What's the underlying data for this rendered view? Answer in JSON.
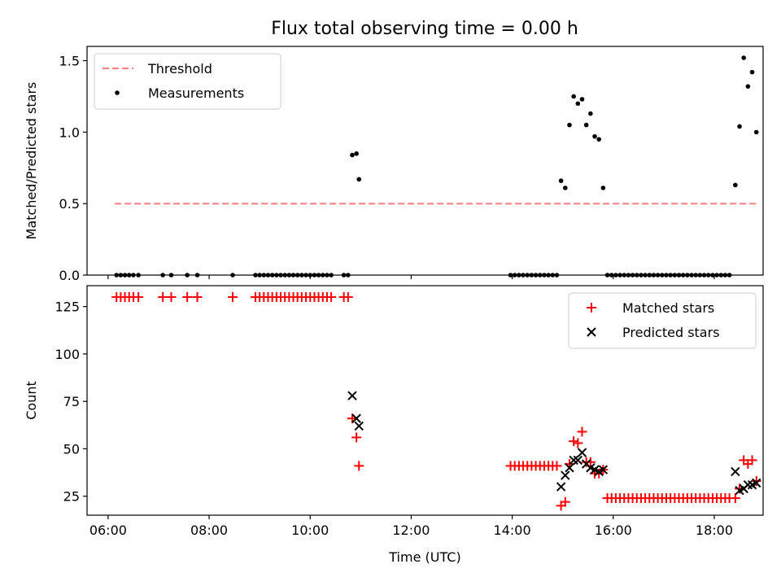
{
  "title": "Flux total observing time = 0.00 h",
  "chart_data": [
    {
      "type": "scatter",
      "panel": "top",
      "title": "Flux total observing time = 0.00 h",
      "xlabel": "",
      "ylabel": "Matched/Predicted stars",
      "xlim": [
        "05:35",
        "18:58"
      ],
      "ylim": [
        0,
        1.6
      ],
      "yticks": [
        0.0,
        0.5,
        1.0,
        1.5
      ],
      "ytick_labels": [
        "0.0",
        "0.5",
        "1.0",
        "1.5"
      ],
      "xticks": [
        "06:00",
        "08:00",
        "10:00",
        "12:00",
        "14:00",
        "16:00",
        "18:00"
      ],
      "legend_position": "upper left",
      "threshold": {
        "name": "Threshold",
        "value": 0.5,
        "x_start": "06:08",
        "x_end": "18:50",
        "color": "#ff7f7f",
        "style": "dashed"
      },
      "series": [
        {
          "name": "Measurements",
          "color": "#000000",
          "points": [
            [
              "06:10",
              0
            ],
            [
              "06:15",
              0
            ],
            [
              "06:20",
              0
            ],
            [
              "06:25",
              0
            ],
            [
              "06:30",
              0
            ],
            [
              "06:36",
              0
            ],
            [
              "07:05",
              0
            ],
            [
              "07:15",
              0
            ],
            [
              "07:34",
              0
            ],
            [
              "07:46",
              0
            ],
            [
              "08:28",
              0
            ],
            [
              "08:55",
              0
            ],
            [
              "09:00",
              0
            ],
            [
              "09:05",
              0
            ],
            [
              "09:10",
              0
            ],
            [
              "09:15",
              0
            ],
            [
              "09:20",
              0
            ],
            [
              "09:25",
              0
            ],
            [
              "09:30",
              0
            ],
            [
              "09:35",
              0
            ],
            [
              "09:40",
              0
            ],
            [
              "09:45",
              0
            ],
            [
              "09:50",
              0
            ],
            [
              "09:55",
              0
            ],
            [
              "10:00",
              0
            ],
            [
              "10:05",
              0
            ],
            [
              "10:10",
              0
            ],
            [
              "10:15",
              0
            ],
            [
              "10:20",
              0
            ],
            [
              "10:25",
              0
            ],
            [
              "10:40",
              0
            ],
            [
              "10:45",
              0
            ],
            [
              "10:50",
              0.84
            ],
            [
              "10:55",
              0.85
            ],
            [
              "10:58",
              0.67
            ],
            [
              "13:58",
              0
            ],
            [
              "14:03",
              0
            ],
            [
              "14:08",
              0
            ],
            [
              "14:13",
              0
            ],
            [
              "14:18",
              0
            ],
            [
              "14:23",
              0
            ],
            [
              "14:28",
              0
            ],
            [
              "14:33",
              0
            ],
            [
              "14:38",
              0
            ],
            [
              "14:43",
              0
            ],
            [
              "14:48",
              0
            ],
            [
              "14:53",
              0
            ],
            [
              "14:58",
              0.66
            ],
            [
              "15:03",
              0.61
            ],
            [
              "15:08",
              1.05
            ],
            [
              "15:13",
              1.25
            ],
            [
              "15:18",
              1.2
            ],
            [
              "15:23",
              1.23
            ],
            [
              "15:28",
              1.05
            ],
            [
              "15:33",
              1.13
            ],
            [
              "15:38",
              0.97
            ],
            [
              "15:43",
              0.95
            ],
            [
              "15:48",
              0.61
            ],
            [
              "15:53",
              0
            ],
            [
              "15:58",
              0
            ],
            [
              "16:03",
              0
            ],
            [
              "16:08",
              0
            ],
            [
              "16:13",
              0
            ],
            [
              "16:18",
              0
            ],
            [
              "16:23",
              0
            ],
            [
              "16:28",
              0
            ],
            [
              "16:33",
              0
            ],
            [
              "16:38",
              0
            ],
            [
              "16:43",
              0
            ],
            [
              "16:48",
              0
            ],
            [
              "16:53",
              0
            ],
            [
              "16:58",
              0
            ],
            [
              "17:03",
              0
            ],
            [
              "17:08",
              0
            ],
            [
              "17:13",
              0
            ],
            [
              "17:18",
              0
            ],
            [
              "17:23",
              0
            ],
            [
              "17:28",
              0
            ],
            [
              "17:33",
              0
            ],
            [
              "17:38",
              0
            ],
            [
              "17:43",
              0
            ],
            [
              "17:48",
              0
            ],
            [
              "17:53",
              0
            ],
            [
              "17:58",
              0
            ],
            [
              "18:03",
              0
            ],
            [
              "18:08",
              0
            ],
            [
              "18:13",
              0
            ],
            [
              "18:18",
              0
            ],
            [
              "18:25",
              0.63
            ],
            [
              "18:30",
              1.04
            ],
            [
              "18:35",
              1.52
            ],
            [
              "18:40",
              1.32
            ],
            [
              "18:45",
              1.42
            ],
            [
              "18:50",
              1.0
            ]
          ]
        }
      ]
    },
    {
      "type": "scatter",
      "panel": "bottom",
      "xlabel": "Time (UTC)",
      "ylabel": "Count",
      "xlim": [
        "05:35",
        "18:58"
      ],
      "ylim": [
        15,
        136
      ],
      "yticks": [
        25,
        50,
        75,
        100,
        125
      ],
      "ytick_labels": [
        "25",
        "50",
        "75",
        "100",
        "125"
      ],
      "xticks": [
        "06:00",
        "08:00",
        "10:00",
        "12:00",
        "14:00",
        "16:00",
        "18:00"
      ],
      "xtick_labels": [
        "06:00",
        "08:00",
        "10:00",
        "12:00",
        "14:00",
        "16:00",
        "18:00"
      ],
      "legend_position": "upper right",
      "series": [
        {
          "name": "Matched stars",
          "marker": "+",
          "color": "#ff0000",
          "points": [
            [
              "06:10",
              130
            ],
            [
              "06:15",
              130
            ],
            [
              "06:20",
              130
            ],
            [
              "06:25",
              130
            ],
            [
              "06:30",
              130
            ],
            [
              "06:36",
              130
            ],
            [
              "07:05",
              130
            ],
            [
              "07:15",
              130
            ],
            [
              "07:34",
              130
            ],
            [
              "07:46",
              130
            ],
            [
              "08:28",
              130
            ],
            [
              "08:55",
              130
            ],
            [
              "09:00",
              130
            ],
            [
              "09:05",
              130
            ],
            [
              "09:10",
              130
            ],
            [
              "09:15",
              130
            ],
            [
              "09:20",
              130
            ],
            [
              "09:25",
              130
            ],
            [
              "09:30",
              130
            ],
            [
              "09:35",
              130
            ],
            [
              "09:40",
              130
            ],
            [
              "09:45",
              130
            ],
            [
              "09:50",
              130
            ],
            [
              "09:55",
              130
            ],
            [
              "10:00",
              130
            ],
            [
              "10:05",
              130
            ],
            [
              "10:10",
              130
            ],
            [
              "10:15",
              130
            ],
            [
              "10:20",
              130
            ],
            [
              "10:25",
              130
            ],
            [
              "10:40",
              130
            ],
            [
              "10:45",
              130
            ],
            [
              "10:50",
              66
            ],
            [
              "10:55",
              56
            ],
            [
              "10:58",
              41
            ],
            [
              "13:58",
              41
            ],
            [
              "14:03",
              41
            ],
            [
              "14:08",
              41
            ],
            [
              "14:13",
              41
            ],
            [
              "14:18",
              41
            ],
            [
              "14:23",
              41
            ],
            [
              "14:28",
              41
            ],
            [
              "14:33",
              41
            ],
            [
              "14:38",
              41
            ],
            [
              "14:43",
              41
            ],
            [
              "14:48",
              41
            ],
            [
              "14:53",
              41
            ],
            [
              "14:58",
              20
            ],
            [
              "15:03",
              22
            ],
            [
              "15:08",
              42
            ],
            [
              "15:13",
              54
            ],
            [
              "15:18",
              53
            ],
            [
              "15:23",
              59
            ],
            [
              "15:28",
              43
            ],
            [
              "15:33",
              43
            ],
            [
              "15:38",
              37
            ],
            [
              "15:43",
              37
            ],
            [
              "15:48",
              39
            ],
            [
              "15:53",
              24
            ],
            [
              "15:58",
              24
            ],
            [
              "16:03",
              24
            ],
            [
              "16:08",
              24
            ],
            [
              "16:13",
              24
            ],
            [
              "16:18",
              24
            ],
            [
              "16:23",
              24
            ],
            [
              "16:28",
              24
            ],
            [
              "16:33",
              24
            ],
            [
              "16:38",
              24
            ],
            [
              "16:43",
              24
            ],
            [
              "16:48",
              24
            ],
            [
              "16:53",
              24
            ],
            [
              "16:58",
              24
            ],
            [
              "17:03",
              24
            ],
            [
              "17:08",
              24
            ],
            [
              "17:13",
              24
            ],
            [
              "17:18",
              24
            ],
            [
              "17:23",
              24
            ],
            [
              "17:28",
              24
            ],
            [
              "17:33",
              24
            ],
            [
              "17:38",
              24
            ],
            [
              "17:43",
              24
            ],
            [
              "17:48",
              24
            ],
            [
              "17:53",
              24
            ],
            [
              "17:58",
              24
            ],
            [
              "18:03",
              24
            ],
            [
              "18:08",
              24
            ],
            [
              "18:13",
              24
            ],
            [
              "18:18",
              24
            ],
            [
              "18:25",
              24
            ],
            [
              "18:30",
              29
            ],
            [
              "18:35",
              44
            ],
            [
              "18:40",
              42
            ],
            [
              "18:45",
              44
            ],
            [
              "18:50",
              33
            ]
          ]
        },
        {
          "name": "Predicted stars",
          "marker": "x",
          "color": "#000000",
          "points": [
            [
              "10:50",
              78
            ],
            [
              "10:55",
              66
            ],
            [
              "10:58",
              62
            ],
            [
              "14:58",
              30
            ],
            [
              "15:03",
              36
            ],
            [
              "15:08",
              40
            ],
            [
              "15:13",
              44
            ],
            [
              "15:18",
              44
            ],
            [
              "15:23",
              48
            ],
            [
              "15:28",
              42
            ],
            [
              "15:33",
              40
            ],
            [
              "15:38",
              39
            ],
            [
              "15:43",
              38
            ],
            [
              "15:48",
              39
            ],
            [
              "18:25",
              38
            ],
            [
              "18:30",
              28
            ],
            [
              "18:35",
              29
            ],
            [
              "18:40",
              31
            ],
            [
              "18:45",
              31
            ],
            [
              "18:50",
              32
            ]
          ]
        }
      ]
    }
  ]
}
